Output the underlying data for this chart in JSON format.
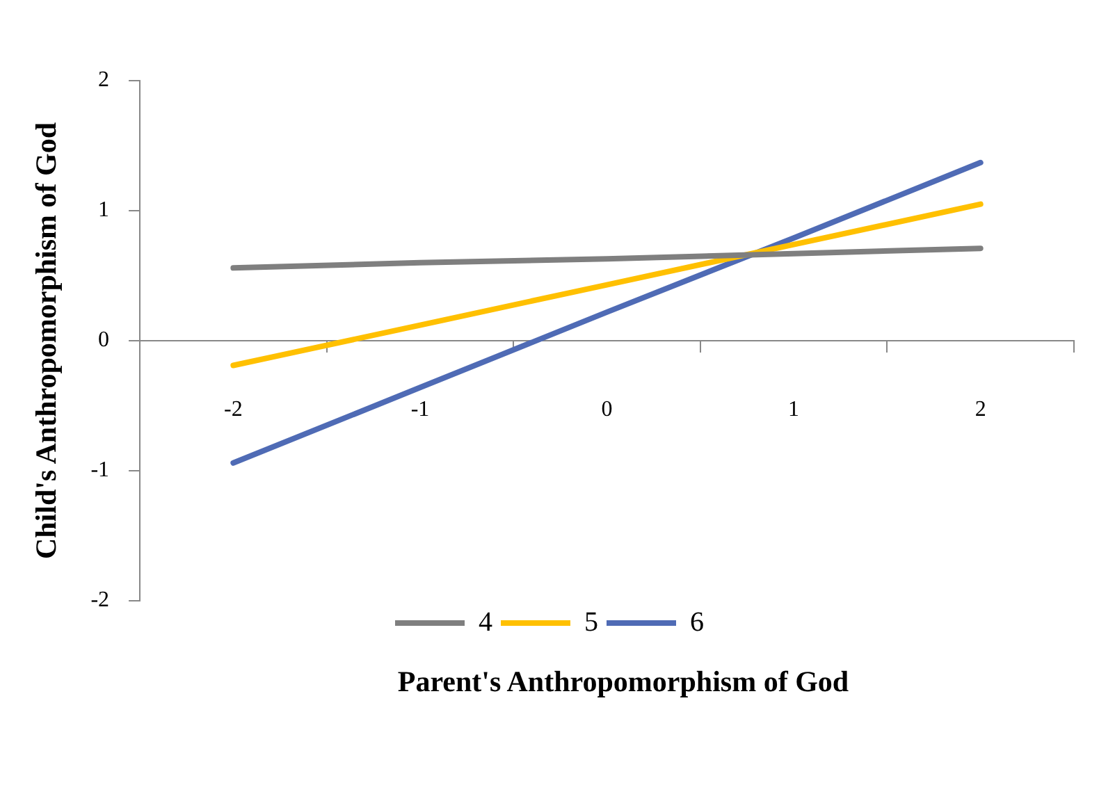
{
  "chart_data": {
    "type": "line",
    "xlabel": "Parent's Anthropomorphism of God",
    "ylabel": "Child's Anthropomorphism of God",
    "categories": [
      "-2",
      "-1",
      "0",
      "1",
      "2"
    ],
    "series": [
      {
        "name": "4",
        "color": "#7f7f7f",
        "values": [
          0.56,
          0.6,
          0.63,
          0.67,
          0.71
        ]
      },
      {
        "name": "5",
        "color": "#ffc000",
        "values": [
          -0.19,
          0.12,
          0.43,
          0.74,
          1.05
        ]
      },
      {
        "name": "6",
        "color": "#4f6bb5",
        "values": [
          -0.94,
          -0.36,
          0.22,
          0.79,
          1.37
        ]
      }
    ],
    "ylim": [
      -2,
      2
    ],
    "yticks": [
      -2,
      -1,
      0,
      1,
      2
    ],
    "grid": false,
    "legend": "bottom",
    "marker": "none",
    "line_style": "solid"
  }
}
